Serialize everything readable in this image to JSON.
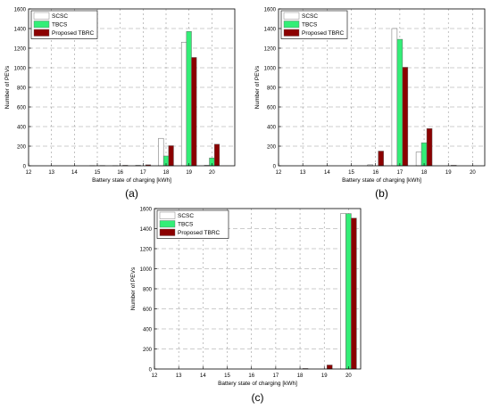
{
  "colors": {
    "scsc": "#ffffff",
    "tbcs": "#33ee77",
    "tbrc": "#8b0000",
    "grid": "#9a9a9a",
    "axis": "#000000"
  },
  "chart_data": [
    {
      "type": "bar",
      "panel_label": "(a)",
      "xlabel": "Battery state of charging [kWh]",
      "ylabel": "Number of PEVs",
      "xlim": [
        12,
        21
      ],
      "ylim": [
        0,
        1600
      ],
      "x_ticks": [
        12,
        13,
        14,
        15,
        16,
        17,
        18,
        19,
        20
      ],
      "y_ticks": [
        0,
        200,
        400,
        600,
        800,
        1000,
        1200,
        1400,
        1600
      ],
      "grid": true,
      "legend_position": "top-left",
      "categories": [
        12,
        13,
        14,
        15,
        16,
        17,
        18,
        19,
        20
      ],
      "series": [
        {
          "name": "SCSC",
          "values": [
            0,
            0,
            0,
            2,
            2,
            5,
            280,
            1260,
            5
          ]
        },
        {
          "name": "TBCS",
          "values": [
            0,
            0,
            0,
            0,
            0,
            0,
            100,
            1370,
            80
          ]
        },
        {
          "name": "Proposed TBRC",
          "values": [
            0,
            0,
            0,
            3,
            5,
            10,
            205,
            1105,
            220
          ]
        }
      ]
    },
    {
      "type": "bar",
      "panel_label": "(b)",
      "xlabel": "Battery state of charging [kWh]",
      "ylabel": "Number of PEVs",
      "xlim": [
        12,
        20.5
      ],
      "ylim": [
        0,
        1600
      ],
      "x_ticks": [
        12,
        13,
        14,
        15,
        16,
        17,
        18,
        19,
        20
      ],
      "y_ticks": [
        0,
        200,
        400,
        600,
        800,
        1000,
        1200,
        1400,
        1600
      ],
      "grid": true,
      "legend_position": "top-left",
      "categories": [
        12,
        13,
        14,
        15,
        16,
        17,
        18,
        19,
        20
      ],
      "series": [
        {
          "name": "SCSC",
          "values": [
            0,
            0,
            0,
            0,
            10,
            1400,
            140,
            0,
            0
          ]
        },
        {
          "name": "TBCS",
          "values": [
            0,
            0,
            0,
            0,
            0,
            1290,
            235,
            0,
            0
          ]
        },
        {
          "name": "Proposed TBRC",
          "values": [
            0,
            0,
            0,
            0,
            150,
            1005,
            380,
            5,
            0
          ]
        }
      ]
    },
    {
      "type": "bar",
      "panel_label": "(c)",
      "xlabel": "Battery state of charging [kWh]",
      "ylabel": "Number of PEVs",
      "xlim": [
        12,
        20.5
      ],
      "ylim": [
        0,
        1600
      ],
      "x_ticks": [
        12,
        13,
        14,
        15,
        16,
        17,
        18,
        19,
        20
      ],
      "y_ticks": [
        0,
        200,
        400,
        600,
        800,
        1000,
        1200,
        1400,
        1600
      ],
      "grid": true,
      "legend_position": "top-left",
      "categories": [
        12,
        13,
        14,
        15,
        16,
        17,
        18,
        19,
        20
      ],
      "series": [
        {
          "name": "SCSC",
          "values": [
            0,
            0,
            0,
            0,
            0,
            0,
            0,
            0,
            1550
          ]
        },
        {
          "name": "TBCS",
          "values": [
            0,
            0,
            0,
            0,
            0,
            0,
            0,
            0,
            1550
          ]
        },
        {
          "name": "Proposed TBRC",
          "values": [
            0,
            0,
            0,
            0,
            0,
            0,
            5,
            40,
            1505
          ]
        }
      ]
    }
  ]
}
